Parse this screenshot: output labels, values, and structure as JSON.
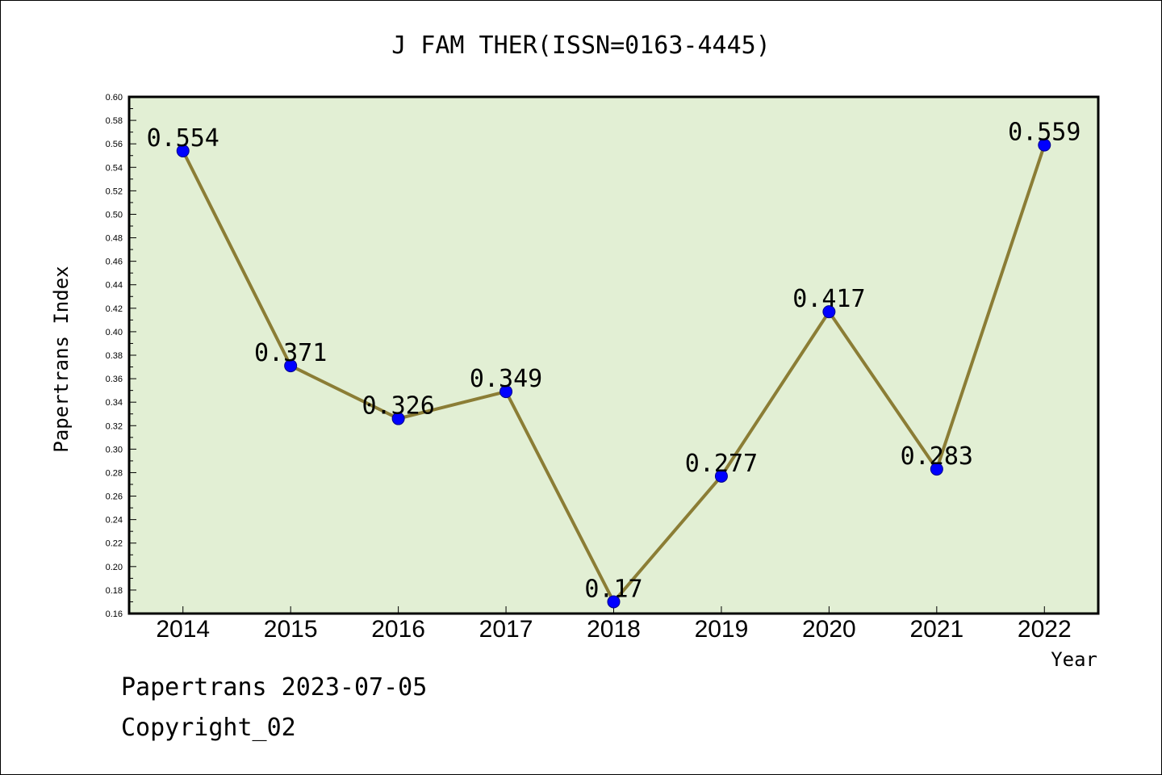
{
  "chart_data": {
    "type": "line",
    "title": "J FAM THER(ISSN=0163-4445)",
    "xlabel": "Year",
    "ylabel": "Papertrans Index",
    "categories": [
      "2014",
      "2015",
      "2016",
      "2017",
      "2018",
      "2019",
      "2020",
      "2021",
      "2022"
    ],
    "series": [
      {
        "values": [
          0.554,
          0.371,
          0.326,
          0.349,
          0.17,
          0.277,
          0.417,
          0.283,
          0.559
        ],
        "data_labels": [
          "0.554",
          "0.371",
          "0.326",
          "0.349",
          "0.17",
          "0.277",
          "0.417",
          "0.283",
          "0.559"
        ]
      }
    ],
    "ylim": [
      0.16,
      0.6
    ],
    "yticks": [
      "0.16",
      "0.18",
      "0.20",
      "0.22",
      "0.24",
      "0.26",
      "0.28",
      "0.30",
      "0.32",
      "0.34",
      "0.36",
      "0.38",
      "0.40",
      "0.42",
      "0.44",
      "0.46",
      "0.48",
      "0.50",
      "0.52",
      "0.54",
      "0.56",
      "0.58",
      "0.60"
    ],
    "grid": false,
    "legend": "none",
    "colors": {
      "plot_background": "#e2efd4",
      "line": "#8b7d35",
      "marker": "#0000ff",
      "axis": "#000000"
    }
  },
  "footer": {
    "line1": "Papertrans 2023-07-05",
    "line2": "Copyright_02"
  }
}
